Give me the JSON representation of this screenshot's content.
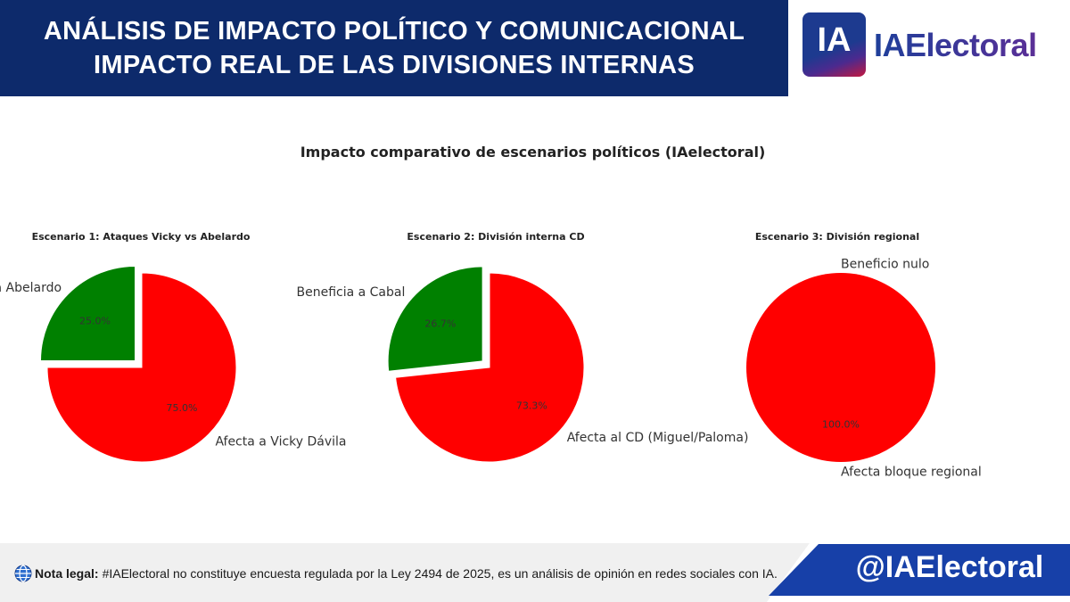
{
  "header": {
    "line1": "ANÁLISIS DE IMPACTO POLÍTICO Y COMUNICACIONAL",
    "line2": "IMPACTO REAL DE LAS DIVISIONES INTERNAS"
  },
  "brand": {
    "badge": "IA",
    "name": "IAElectoral"
  },
  "colors": {
    "header_bg": "#0d2a6b",
    "benefit": "#008000",
    "harm": "#ff0000",
    "handle_bg": "#1740a8"
  },
  "chart_data": {
    "type": "pie",
    "title": "Impacto comparativo de escenarios políticos (IAelectoral)",
    "charts": [
      {
        "title": "Escenario 1: Ataques Vicky vs Abelardo",
        "slices": [
          {
            "label": "Beneficia a Abelardo",
            "value": 25.0,
            "pct_label": "25.0%",
            "color": "#008000",
            "exploded": true
          },
          {
            "label": "Afecta a Vicky Dávila",
            "value": 75.0,
            "pct_label": "75.0%",
            "color": "#ff0000",
            "exploded": false
          }
        ]
      },
      {
        "title": "Escenario 2: División interna CD",
        "slices": [
          {
            "label": "Beneficia a Cabal",
            "value": 26.7,
            "pct_label": "26.7%",
            "color": "#008000",
            "exploded": true
          },
          {
            "label": "Afecta al CD (Miguel/Paloma)",
            "value": 73.3,
            "pct_label": "73.3%",
            "color": "#ff0000",
            "exploded": false
          }
        ]
      },
      {
        "title": "Escenario 3: División regional",
        "slices": [
          {
            "label": "Beneficio nulo",
            "value": 0.0,
            "pct_label": "0.0%",
            "color": "#008000",
            "exploded": false
          },
          {
            "label": "Afecta bloque regional",
            "value": 100.0,
            "pct_label": "100.0%",
            "color": "#ff0000",
            "exploded": false
          }
        ]
      }
    ]
  },
  "footer": {
    "legal_label": "Nota legal:",
    "legal_text": "#IAElectoral no constituye encuesta regulada por la Ley 2494 de 2025, es un análisis de opinión en redes sociales con IA.",
    "icon": "globe-icon",
    "handle": "@IAElectoral"
  }
}
